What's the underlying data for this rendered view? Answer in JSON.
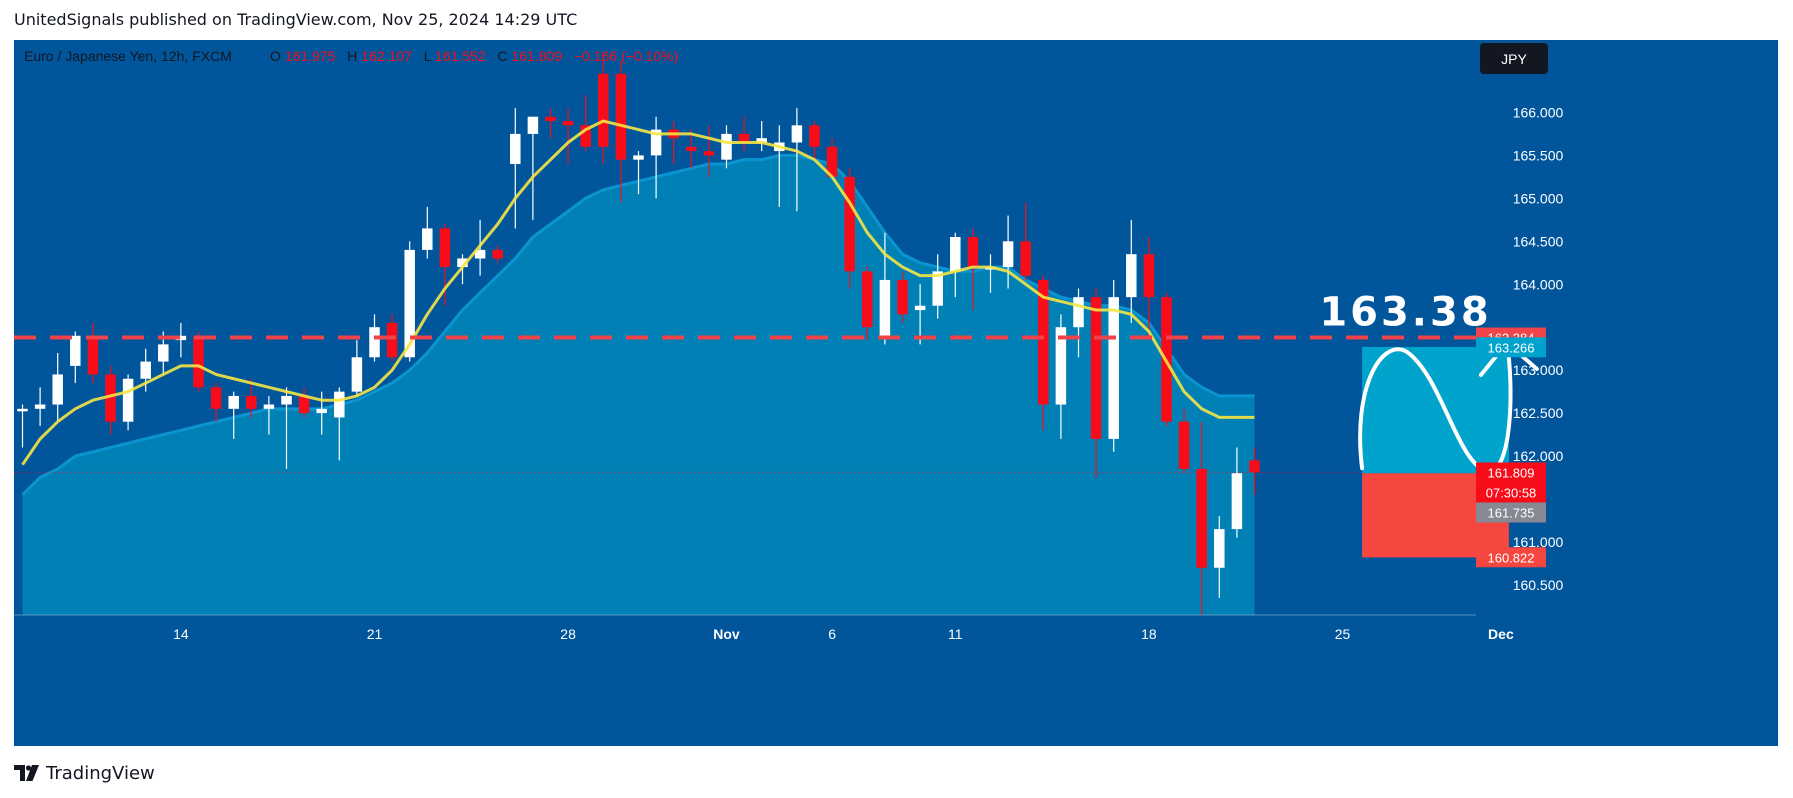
{
  "header": {
    "published_text": "UnitedSignals published on TradingView.com, Nov 25, 2024 14:29 UTC"
  },
  "footer": {
    "brand": "TradingView"
  },
  "colors": {
    "background": "#00559b",
    "area_fill": "#0180b6",
    "area_edge": "#0a95d0",
    "ma_line": "#f5e642",
    "bull": "#ffffff",
    "bear": "#f70d1a",
    "dashed_line": "#f0434a",
    "target_box": "#00a3cc",
    "stop_box": "#f5473f"
  },
  "chart_data": {
    "type": "candlestick",
    "symbol_info": {
      "name": "Euro / Japanese Yen, 12h, FXCM",
      "open_label": "O",
      "open": "161.975",
      "high_label": "H",
      "high": "162.107",
      "low_label": "L",
      "low": "161.552",
      "close_label": "C",
      "close": "161.809",
      "change": "−0.166 (−0.10%)"
    },
    "currency_button": "JPY",
    "ylim": [
      160.15,
      166.75
    ],
    "y_ticks": [
      "166.000",
      "165.500",
      "165.000",
      "164.500",
      "164.000",
      "163.000",
      "162.500",
      "162.000",
      "161.000",
      "160.500"
    ],
    "x_ticks": [
      {
        "label": "14",
        "index": 9
      },
      {
        "label": "21",
        "index": 20
      },
      {
        "label": "28",
        "index": 31
      },
      {
        "label": "Nov",
        "index": 40
      },
      {
        "label": "6",
        "index": 46
      },
      {
        "label": "11",
        "index": 53
      },
      {
        "label": "18",
        "index": 64
      },
      {
        "label": "25",
        "index": 75
      },
      {
        "label": "Dec",
        "index": 84
      }
    ],
    "candles": [
      [
        162.55,
        162.6,
        162.1,
        162.55
      ],
      [
        162.55,
        162.8,
        162.35,
        162.6
      ],
      [
        162.6,
        163.2,
        162.4,
        162.95
      ],
      [
        163.05,
        163.45,
        162.85,
        163.4
      ],
      [
        163.4,
        163.55,
        162.85,
        162.95
      ],
      [
        162.95,
        163.05,
        162.25,
        162.4
      ],
      [
        162.4,
        162.95,
        162.3,
        162.9
      ],
      [
        162.9,
        163.25,
        162.75,
        163.1
      ],
      [
        163.1,
        163.45,
        162.95,
        163.3
      ],
      [
        163.35,
        163.55,
        163.15,
        163.4
      ],
      [
        163.4,
        163.45,
        162.75,
        162.8
      ],
      [
        162.8,
        162.85,
        162.4,
        162.55
      ],
      [
        162.55,
        162.75,
        162.2,
        162.7
      ],
      [
        162.7,
        162.9,
        162.45,
        162.55
      ],
      [
        162.55,
        162.7,
        162.25,
        162.6
      ],
      [
        162.6,
        162.8,
        161.85,
        162.7
      ],
      [
        162.7,
        162.8,
        162.45,
        162.5
      ],
      [
        162.5,
        162.75,
        162.25,
        162.55
      ],
      [
        162.45,
        162.8,
        161.95,
        162.75
      ],
      [
        162.75,
        163.35,
        162.7,
        163.15
      ],
      [
        163.15,
        163.65,
        163.1,
        163.5
      ],
      [
        163.55,
        163.65,
        163.1,
        163.15
      ],
      [
        163.15,
        164.5,
        163.1,
        164.4
      ],
      [
        164.4,
        164.9,
        164.3,
        164.65
      ],
      [
        164.65,
        164.7,
        163.75,
        164.2
      ],
      [
        164.2,
        164.35,
        164.0,
        164.3
      ],
      [
        164.3,
        164.75,
        164.1,
        164.4
      ],
      [
        164.4,
        164.45,
        164.25,
        164.3
      ],
      [
        165.4,
        166.05,
        164.65,
        165.75
      ],
      [
        165.75,
        165.95,
        164.75,
        165.95
      ],
      [
        165.95,
        166.05,
        165.7,
        165.9
      ],
      [
        165.9,
        166.05,
        165.4,
        165.85
      ],
      [
        165.85,
        166.2,
        165.55,
        165.6
      ],
      [
        166.45,
        166.7,
        165.4,
        165.6
      ],
      [
        166.45,
        166.6,
        164.95,
        165.45
      ],
      [
        165.45,
        165.55,
        165.05,
        165.5
      ],
      [
        165.5,
        165.95,
        165.0,
        165.8
      ],
      [
        165.8,
        165.9,
        165.4,
        165.7
      ],
      [
        165.6,
        165.8,
        165.35,
        165.55
      ],
      [
        165.55,
        165.85,
        165.25,
        165.5
      ],
      [
        165.45,
        165.85,
        165.35,
        165.75
      ],
      [
        165.75,
        165.95,
        165.55,
        165.65
      ],
      [
        165.65,
        165.9,
        165.55,
        165.7
      ],
      [
        165.55,
        165.85,
        164.9,
        165.65
      ],
      [
        165.65,
        166.05,
        164.85,
        165.85
      ],
      [
        165.85,
        165.9,
        165.45,
        165.6
      ],
      [
        165.6,
        165.7,
        165.25,
        165.25
      ],
      [
        165.25,
        165.35,
        163.95,
        164.15
      ],
      [
        164.15,
        164.2,
        163.35,
        163.5
      ],
      [
        163.4,
        164.6,
        163.3,
        164.05
      ],
      [
        164.05,
        164.15,
        163.55,
        163.65
      ],
      [
        163.7,
        164.0,
        163.3,
        163.75
      ],
      [
        163.75,
        164.35,
        163.6,
        164.15
      ],
      [
        164.15,
        164.6,
        163.85,
        164.55
      ],
      [
        164.55,
        164.65,
        163.7,
        164.2
      ],
      [
        164.2,
        164.35,
        163.9,
        164.2
      ],
      [
        164.2,
        164.8,
        163.95,
        164.5
      ],
      [
        164.5,
        164.95,
        164.05,
        164.1
      ],
      [
        164.05,
        164.1,
        162.3,
        162.6
      ],
      [
        162.6,
        163.65,
        162.2,
        163.5
      ],
      [
        163.5,
        163.95,
        163.15,
        163.85
      ],
      [
        163.85,
        163.95,
        161.75,
        162.2
      ],
      [
        162.2,
        164.05,
        162.05,
        163.85
      ],
      [
        163.85,
        164.75,
        163.55,
        164.35
      ],
      [
        164.35,
        164.55,
        163.35,
        163.85
      ],
      [
        163.85,
        163.9,
        162.35,
        162.4
      ],
      [
        162.4,
        162.55,
        161.8,
        161.85
      ],
      [
        161.85,
        162.4,
        160.15,
        160.7
      ],
      [
        160.7,
        161.3,
        160.35,
        161.15
      ],
      [
        161.15,
        162.1,
        161.05,
        161.8
      ],
      [
        161.95,
        162.1,
        161.55,
        161.81
      ]
    ],
    "ma_series": [
      161.9,
      162.2,
      162.4,
      162.55,
      162.65,
      162.7,
      162.75,
      162.85,
      162.95,
      163.05,
      163.05,
      162.95,
      162.9,
      162.85,
      162.8,
      162.75,
      162.7,
      162.65,
      162.65,
      162.7,
      162.8,
      163.0,
      163.3,
      163.65,
      163.95,
      164.2,
      164.45,
      164.7,
      165.0,
      165.25,
      165.45,
      165.65,
      165.8,
      165.9,
      165.85,
      165.8,
      165.75,
      165.75,
      165.75,
      165.7,
      165.65,
      165.65,
      165.65,
      165.6,
      165.55,
      165.45,
      165.25,
      164.95,
      164.6,
      164.35,
      164.2,
      164.1,
      164.1,
      164.15,
      164.2,
      164.2,
      164.15,
      164.0,
      163.85,
      163.8,
      163.75,
      163.7,
      163.7,
      163.65,
      163.45,
      163.1,
      162.75,
      162.55,
      162.45,
      162.45,
      162.45
    ],
    "area_series": [
      161.55,
      161.75,
      161.85,
      162.0,
      162.05,
      162.1,
      162.15,
      162.2,
      162.25,
      162.3,
      162.35,
      162.4,
      162.45,
      162.5,
      162.55,
      162.55,
      162.55,
      162.55,
      162.6,
      162.65,
      162.75,
      162.85,
      163.0,
      163.2,
      163.45,
      163.7,
      163.9,
      164.1,
      164.3,
      164.55,
      164.7,
      164.85,
      165.0,
      165.1,
      165.15,
      165.2,
      165.25,
      165.3,
      165.35,
      165.4,
      165.4,
      165.45,
      165.45,
      165.5,
      165.5,
      165.45,
      165.4,
      165.2,
      164.9,
      164.6,
      164.35,
      164.25,
      164.2,
      164.15,
      164.15,
      164.2,
      164.2,
      164.05,
      163.95,
      163.85,
      163.8,
      163.75,
      163.75,
      163.7,
      163.55,
      163.25,
      162.95,
      162.8,
      162.7,
      162.7,
      162.7
    ],
    "dashed_level": 163.38,
    "dashed_label": "163.38",
    "price_labels": [
      {
        "value": "163.384",
        "color": "#f0434a"
      },
      {
        "value": "163.266",
        "color": "#00a3cc"
      },
      {
        "value": "161.809",
        "color": "#f70d1a"
      },
      {
        "value": "07:30:58",
        "color": "#f70d1a"
      },
      {
        "value": "161.735",
        "color": "#868993"
      },
      {
        "value": "160.822",
        "color": "#f5473f"
      }
    ],
    "target_box": {
      "top": 163.27,
      "bottom": 161.8,
      "start_index": 76,
      "end_index": 84
    },
    "stop_box": {
      "top": 161.8,
      "bottom": 160.82,
      "start_index": 76,
      "end_index": 84
    }
  }
}
